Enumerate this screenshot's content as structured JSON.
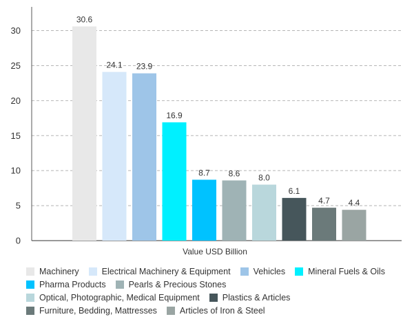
{
  "chart_data": {
    "type": "bar",
    "title": "",
    "xlabel": "Value USD Billion",
    "ylabel": "",
    "ylim": [
      0,
      33
    ],
    "yticks": [
      0,
      5,
      10,
      15,
      20,
      25,
      30
    ],
    "grid": "horizontal-dashed",
    "legend_position": "bottom",
    "categories": [
      "Machinery",
      "Electrical Machinery & Equipment",
      "Vehicles",
      "Mineral Fuels & Oils",
      "Pharma Products",
      "Pearls & Precious Stones",
      "Optical, Photographic, Medical Equipment",
      "Plastics & Articles",
      "Furniture, Bedding, Mattresses",
      "Articles of Iron & Steel"
    ],
    "values": [
      30.6,
      24.1,
      23.9,
      16.9,
      8.7,
      8.6,
      8.0,
      6.1,
      4.7,
      4.4
    ],
    "value_labels": [
      "30.6",
      "24.1",
      "23.9",
      "16.9",
      "8.7",
      "8.6",
      "8.0",
      "6.1",
      "4.7",
      "4.4"
    ],
    "colors": [
      "#e8e8e8",
      "#d6e8fa",
      "#9ec5e8",
      "#00f0ff",
      "#00c2ff",
      "#9fb3b5",
      "#b9d7dc",
      "#46565b",
      "#6b7a7a",
      "#9aa5a3"
    ]
  }
}
